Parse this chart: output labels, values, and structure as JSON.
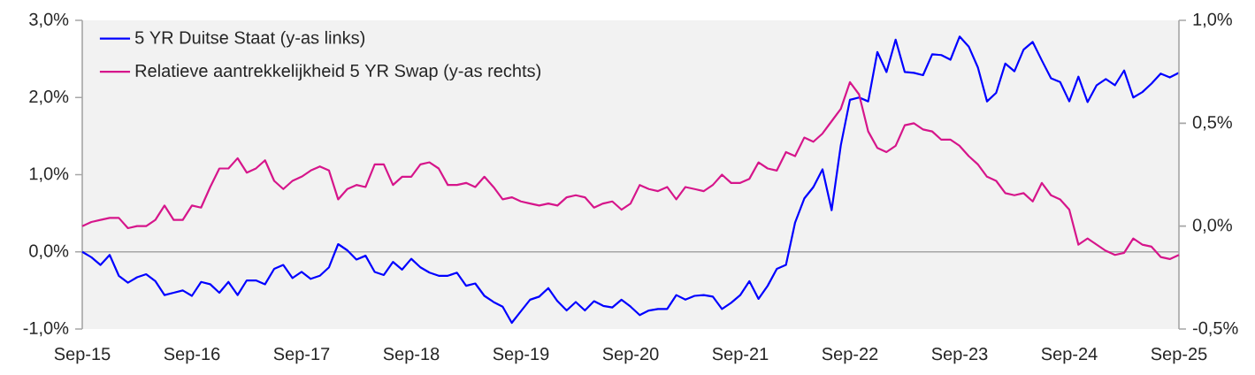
{
  "chart_data": {
    "type": "line",
    "x": [
      "2015-09",
      "2015-10",
      "2015-11",
      "2015-12",
      "2016-01",
      "2016-02",
      "2016-03",
      "2016-04",
      "2016-05",
      "2016-06",
      "2016-07",
      "2016-08",
      "2016-09",
      "2016-10",
      "2016-11",
      "2016-12",
      "2017-01",
      "2017-02",
      "2017-03",
      "2017-04",
      "2017-05",
      "2017-06",
      "2017-07",
      "2017-08",
      "2017-09",
      "2017-10",
      "2017-11",
      "2017-12",
      "2018-01",
      "2018-02",
      "2018-03",
      "2018-04",
      "2018-05",
      "2018-06",
      "2018-07",
      "2018-08",
      "2018-09",
      "2018-10",
      "2018-11",
      "2018-12",
      "2019-01",
      "2019-02",
      "2019-03",
      "2019-04",
      "2019-05",
      "2019-06",
      "2019-07",
      "2019-08",
      "2019-09",
      "2019-10",
      "2019-11",
      "2019-12",
      "2020-01",
      "2020-02",
      "2020-03",
      "2020-04",
      "2020-05",
      "2020-06",
      "2020-07",
      "2020-08",
      "2020-09",
      "2020-10",
      "2020-11",
      "2020-12",
      "2021-01",
      "2021-02",
      "2021-03",
      "2021-04",
      "2021-05",
      "2021-06",
      "2021-07",
      "2021-08",
      "2021-09",
      "2021-10",
      "2021-11",
      "2021-12",
      "2022-01",
      "2022-02",
      "2022-03",
      "2022-04",
      "2022-05",
      "2022-06",
      "2022-07",
      "2022-08",
      "2022-09",
      "2022-10",
      "2022-11",
      "2022-12",
      "2023-01",
      "2023-02",
      "2023-03",
      "2023-04",
      "2023-05",
      "2023-06",
      "2023-07",
      "2023-08",
      "2023-09",
      "2023-10",
      "2023-11",
      "2023-12",
      "2024-01",
      "2024-02",
      "2024-03",
      "2024-04",
      "2024-05",
      "2024-06",
      "2024-07",
      "2024-08",
      "2024-09",
      "2024-10",
      "2024-11",
      "2024-12",
      "2025-01",
      "2025-02",
      "2025-03",
      "2025-04",
      "2025-05",
      "2025-06",
      "2025-07",
      "2025-08",
      "2025-09"
    ],
    "xlim": [
      "2015-09",
      "2025-09"
    ],
    "xticks": [
      {
        "value": "2015-09",
        "label": "Sep-15"
      },
      {
        "value": "2016-09",
        "label": "Sep-16"
      },
      {
        "value": "2017-09",
        "label": "Sep-17"
      },
      {
        "value": "2018-09",
        "label": "Sep-18"
      },
      {
        "value": "2019-09",
        "label": "Sep-19"
      },
      {
        "value": "2020-09",
        "label": "Sep-20"
      },
      {
        "value": "2021-09",
        "label": "Sep-21"
      },
      {
        "value": "2022-09",
        "label": "Sep-22"
      },
      {
        "value": "2023-09",
        "label": "Sep-23"
      },
      {
        "value": "2024-09",
        "label": "Sep-24"
      },
      {
        "value": "2025-09",
        "label": "Sep-25"
      }
    ],
    "ylim": [
      -1,
      3
    ],
    "yticks": [
      {
        "value": -1,
        "label": "-1,0%"
      },
      {
        "value": 0,
        "label": "0,0%"
      },
      {
        "value": 1,
        "label": "1,0%"
      },
      {
        "value": 2,
        "label": "2,0%"
      },
      {
        "value": 3,
        "label": "3,0%"
      }
    ],
    "y2lim": [
      -0.5,
      1
    ],
    "y2ticks": [
      {
        "value": -0.5,
        "label": "-0,5%"
      },
      {
        "value": 0,
        "label": "0,0%"
      },
      {
        "value": 0.5,
        "label": "0,5%"
      },
      {
        "value": 1,
        "label": "1,0%"
      }
    ],
    "series": [
      {
        "name": "5 YR Duitse Staat (y-as links)",
        "color": "#0000ff",
        "values": [
          0,
          -0.07,
          -0.17,
          -0.04,
          -0.31,
          -0.4,
          -0.33,
          -0.29,
          -0.38,
          -0.56,
          -0.53,
          -0.5,
          -0.57,
          -0.39,
          -0.42,
          -0.53,
          -0.39,
          -0.56,
          -0.37,
          -0.37,
          -0.42,
          -0.22,
          -0.17,
          -0.34,
          -0.26,
          -0.35,
          -0.31,
          -0.2,
          0.1,
          0.02,
          -0.1,
          -0.05,
          -0.26,
          -0.3,
          -0.13,
          -0.23,
          -0.09,
          -0.2,
          -0.27,
          -0.31,
          -0.31,
          -0.27,
          -0.44,
          -0.41,
          -0.57,
          -0.65,
          -0.71,
          -0.92,
          -0.77,
          -0.62,
          -0.58,
          -0.47,
          -0.64,
          -0.76,
          -0.65,
          -0.76,
          -0.64,
          -0.7,
          -0.72,
          -0.62,
          -0.71,
          -0.82,
          -0.76,
          -0.74,
          -0.74,
          -0.56,
          -0.62,
          -0.57,
          -0.56,
          -0.58,
          -0.74,
          -0.66,
          -0.56,
          -0.38,
          -0.61,
          -0.44,
          -0.22,
          -0.17,
          0.38,
          0.69,
          0.84,
          1.07,
          0.54,
          1.38,
          1.97,
          2.0,
          1.95,
          2.59,
          2.33,
          2.75,
          2.33,
          2.32,
          2.29,
          2.56,
          2.55,
          2.49,
          2.79,
          2.66,
          2.39,
          1.95,
          2.06,
          2.44,
          2.34,
          2.62,
          2.72,
          2.48,
          2.25,
          2.2,
          1.95,
          2.27,
          1.94,
          2.16,
          2.24,
          2.16,
          2.35,
          2.0,
          2.07,
          2.18,
          2.31,
          2.26,
          2.32
        ]
      },
      {
        "name": "Relatieve aantrekkelijkheid 5 YR Swap (y-as rechts)",
        "color": "#d6168b",
        "axis": "y2",
        "values": [
          0.0,
          0.02,
          0.03,
          0.04,
          0.04,
          -0.01,
          0.0,
          0.0,
          0.03,
          0.1,
          0.03,
          0.03,
          0.1,
          0.09,
          0.19,
          0.28,
          0.28,
          0.33,
          0.26,
          0.28,
          0.32,
          0.22,
          0.18,
          0.22,
          0.24,
          0.27,
          0.29,
          0.27,
          0.13,
          0.18,
          0.2,
          0.19,
          0.3,
          0.3,
          0.2,
          0.24,
          0.24,
          0.3,
          0.31,
          0.28,
          0.2,
          0.2,
          0.21,
          0.19,
          0.24,
          0.19,
          0.13,
          0.14,
          0.12,
          0.11,
          0.1,
          0.11,
          0.1,
          0.14,
          0.15,
          0.14,
          0.09,
          0.11,
          0.12,
          0.08,
          0.11,
          0.2,
          0.18,
          0.17,
          0.19,
          0.13,
          0.19,
          0.18,
          0.17,
          0.2,
          0.25,
          0.21,
          0.21,
          0.23,
          0.31,
          0.28,
          0.27,
          0.36,
          0.34,
          0.43,
          0.41,
          0.45,
          0.51,
          0.57,
          0.7,
          0.64,
          0.46,
          0.38,
          0.36,
          0.39,
          0.49,
          0.5,
          0.47,
          0.46,
          0.42,
          0.42,
          0.39,
          0.34,
          0.3,
          0.24,
          0.22,
          0.16,
          0.15,
          0.16,
          0.12,
          0.21,
          0.15,
          0.13,
          0.08,
          -0.09,
          -0.06,
          -0.09,
          -0.12,
          -0.14,
          -0.13,
          -0.06,
          -0.09,
          -0.1,
          -0.15,
          -0.16,
          -0.14
        ]
      }
    ],
    "ref_lines": [
      {
        "axis": "y",
        "value": 0,
        "color": "#a6a6a6"
      }
    ],
    "legend": "top left",
    "grid": false
  }
}
